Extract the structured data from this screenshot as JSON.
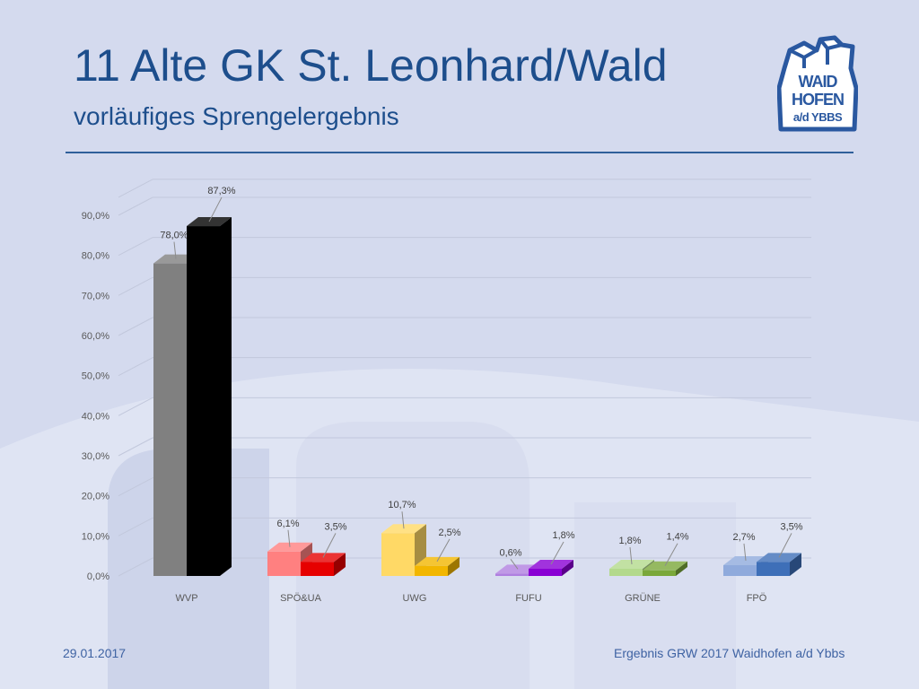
{
  "title": "11 Alte GK St. Leonhard/Wald",
  "subtitle": "vorläufiges Sprengelergebnis",
  "logo": {
    "line1": "WAID",
    "line2": "HOFEN",
    "line3": "a/d YBBS"
  },
  "footer": {
    "date": "29.01.2017",
    "source": "Ergebnis GRW 2017 Waidhofen a/d Ybbs"
  },
  "colors": {
    "title": "#1d4e8c",
    "background": "#d4daee",
    "rule": "#2f5f9a"
  },
  "chart_data": {
    "type": "bar",
    "categories": [
      "WVP",
      "SPÖ&UA",
      "UWG",
      "FUFU",
      "GRÜNE",
      "FPÖ"
    ],
    "series": [
      {
        "values": [
          78.0,
          6.1,
          10.7,
          0.6,
          1.8,
          2.7
        ],
        "labels": [
          "78,0%",
          "6,1%",
          "10,7%",
          "0,6%",
          "1,8%",
          "2,7%"
        ],
        "colors": [
          "#808080",
          "#ff8080",
          "#ffd966",
          "#b07fe0",
          "#b3d98c",
          "#8faadc"
        ]
      },
      {
        "values": [
          87.3,
          3.5,
          2.5,
          1.8,
          1.4,
          3.5
        ],
        "labels": [
          "87,3%",
          "3,5%",
          "2,5%",
          "1,8%",
          "1,4%",
          "3,5%"
        ],
        "colors": [
          "#000000",
          "#e60000",
          "#f2b600",
          "#8a00d4",
          "#7aa83a",
          "#3e6fb8"
        ]
      }
    ],
    "yticks": [
      "0,0%",
      "10,0%",
      "20,0%",
      "30,0%",
      "40,0%",
      "50,0%",
      "60,0%",
      "70,0%",
      "80,0%",
      "90,0%"
    ],
    "ylim": [
      0,
      90
    ],
    "grid": true,
    "xlabel": "",
    "ylabel": ""
  }
}
